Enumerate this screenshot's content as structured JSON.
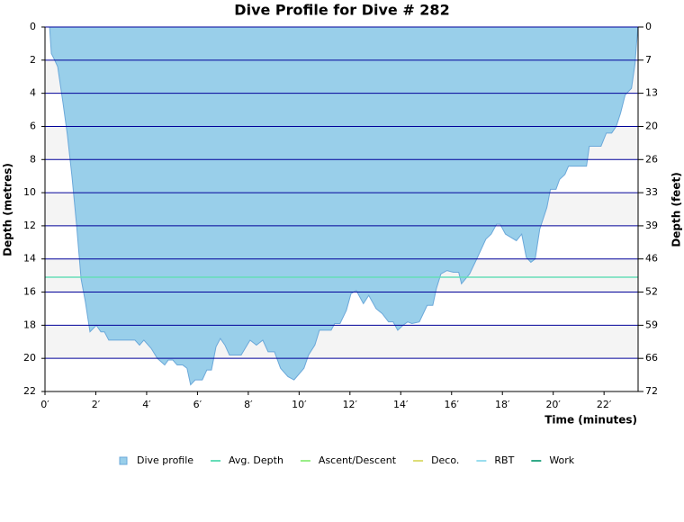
{
  "chart_data": {
    "type": "area",
    "title": "Dive Profile for Dive # 282",
    "xlabel": "Time (minutes)",
    "ylabel": "Depth (metres)",
    "y2label": "Depth (feet)",
    "y_inverted": true,
    "grid": true,
    "grid_color": "#000099",
    "band_color": "#f4f4f4",
    "legend": "bottom",
    "xlim": [
      0,
      23.34
    ],
    "xticks": [
      {
        "value": 0,
        "label": "0′"
      },
      {
        "value": 2,
        "label": "2′"
      },
      {
        "value": 4,
        "label": "4′"
      },
      {
        "value": 6,
        "label": "6′"
      },
      {
        "value": 8,
        "label": "8′"
      },
      {
        "value": 10,
        "label": "10′"
      },
      {
        "value": 12,
        "label": "12′"
      },
      {
        "value": 14,
        "label": "14′"
      },
      {
        "value": 16,
        "label": "16′"
      },
      {
        "value": 18,
        "label": "18′"
      },
      {
        "value": 20,
        "label": "20′"
      },
      {
        "value": 22,
        "label": "22′"
      }
    ],
    "ylim": [
      0,
      22
    ],
    "yticks": [
      0,
      2,
      4,
      6,
      8,
      10,
      12,
      14,
      16,
      18,
      20,
      22
    ],
    "y2lim": [
      0,
      72.18
    ],
    "y2ticks": [
      0,
      {
        "value": 6.56,
        "label": "7"
      },
      {
        "value": 13.12,
        "label": "13"
      },
      {
        "value": 19.69,
        "label": "20"
      },
      {
        "value": 26.25,
        "label": "26"
      },
      {
        "value": 32.81,
        "label": "33"
      },
      {
        "value": 39.37,
        "label": "39"
      },
      {
        "value": 45.93,
        "label": "46"
      },
      {
        "value": 52.49,
        "label": "52"
      },
      {
        "value": 59.06,
        "label": "59"
      },
      {
        "value": 65.62,
        "label": "66"
      },
      {
        "value": 72.18,
        "label": "72"
      }
    ],
    "series": [
      {
        "name": "Dive profile",
        "color": "#99cfea",
        "stroke": "#6ba8d9",
        "x": [
          0.18,
          0.25,
          0.35,
          0.5,
          0.71,
          0.88,
          1.06,
          1.24,
          1.42,
          1.59,
          1.77,
          2.02,
          2.2,
          2.34,
          2.51,
          3.54,
          3.72,
          3.89,
          4.18,
          4.42,
          4.71,
          4.85,
          5.03,
          5.2,
          5.42,
          5.59,
          5.73,
          5.91,
          6.19,
          6.37,
          6.55,
          6.73,
          6.9,
          7.08,
          7.26,
          7.72,
          8.07,
          8.32,
          8.57,
          8.78,
          9.03,
          9.27,
          9.56,
          9.8,
          10.19,
          10.37,
          10.62,
          10.8,
          11.26,
          11.4,
          11.61,
          11.86,
          12.04,
          12.25,
          12.53,
          12.74,
          13.03,
          13.27,
          13.52,
          13.7,
          13.88,
          14.09,
          14.27,
          14.44,
          14.73,
          15.04,
          15.26,
          15.4,
          15.58,
          15.82,
          16.07,
          16.28,
          16.39,
          16.71,
          16.99,
          17.35,
          17.56,
          17.77,
          17.91,
          18.12,
          18.55,
          18.76,
          18.94,
          19.12,
          19.29,
          19.47,
          19.75,
          19.89,
          20.11,
          20.25,
          20.46,
          20.6,
          21.31,
          21.42,
          21.88,
          22.09,
          22.3,
          22.48,
          22.65,
          22.83,
          23.08,
          23.22,
          23.33
        ],
        "values": [
          0,
          1.6,
          1.9,
          2.4,
          4.6,
          6.5,
          9.0,
          11.9,
          15.2,
          16.6,
          18.4,
          18.0,
          18.4,
          18.4,
          18.9,
          18.9,
          19.2,
          18.9,
          19.4,
          20.0,
          20.4,
          20.1,
          20.1,
          20.4,
          20.4,
          20.6,
          21.6,
          21.3,
          21.3,
          20.7,
          20.7,
          19.3,
          18.8,
          19.2,
          19.8,
          19.8,
          18.9,
          19.2,
          18.9,
          19.6,
          19.6,
          20.6,
          21.1,
          21.3,
          20.6,
          19.8,
          19.2,
          18.3,
          18.3,
          17.9,
          17.9,
          17.1,
          16.1,
          15.9,
          16.7,
          16.2,
          17.0,
          17.3,
          17.8,
          17.8,
          18.3,
          18.0,
          17.8,
          17.9,
          17.8,
          16.8,
          16.8,
          15.8,
          14.9,
          14.7,
          14.8,
          14.8,
          15.5,
          14.9,
          14.0,
          12.8,
          12.5,
          11.9,
          11.9,
          12.5,
          12.9,
          12.5,
          13.9,
          14.2,
          14.0,
          12.2,
          10.9,
          9.8,
          9.8,
          9.2,
          8.9,
          8.4,
          8.4,
          7.2,
          7.2,
          6.4,
          6.4,
          6.0,
          5.2,
          4.1,
          3.7,
          2.2,
          0
        ]
      },
      {
        "name": "Avg. Depth",
        "color": "#66ddb8",
        "value": 15.1
      },
      {
        "name": "Ascent/Descent",
        "color": "#99ee88"
      },
      {
        "name": "Deco.",
        "color": "#dddd77"
      },
      {
        "name": "RBT",
        "color": "#99ddee"
      },
      {
        "name": "Work",
        "color": "#33aa88"
      }
    ]
  }
}
